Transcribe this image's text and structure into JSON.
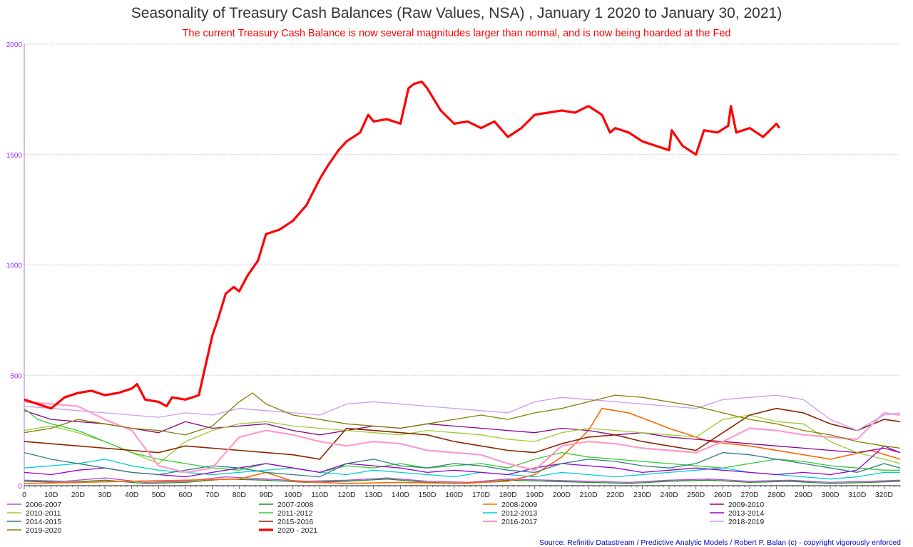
{
  "chart_data": {
    "type": "line",
    "title": "Seasonality of Treasury Cash Balances (Raw Values, NSA) , January 1 2020 to January 30, 2021)",
    "subtitle": "The current Treasury Cash Balance is now several magnitudes larger than normal, and is now being hoarded at the Fed",
    "xlabel": "",
    "ylabel": "",
    "xlim": [
      0,
      326
    ],
    "ylim": [
      0,
      2000
    ],
    "x_ticks": [
      "0",
      "10D",
      "20D",
      "30D",
      "40D",
      "50D",
      "60D",
      "70D",
      "80D",
      "90D",
      "100D",
      "110D",
      "120D",
      "130D",
      "140D",
      "150D",
      "160D",
      "170D",
      "180D",
      "190D",
      "200D",
      "210D",
      "220D",
      "230D",
      "240D",
      "250D",
      "260D",
      "270D",
      "280D",
      "290D",
      "300D",
      "310D",
      "320D"
    ],
    "y_ticks": [
      "0",
      "500",
      "1000",
      "1500",
      "2000"
    ],
    "grid": "horizontal dotted",
    "legend_position": "bottom",
    "source": "Source: Refinitiv Datastream / Predictive Analytic Models / Robert P. Balan (c)  - copyright vigorously enforced",
    "series": [
      {
        "name": "2006-2007",
        "color": "#b04fd6",
        "width": 1.3,
        "x": [
          0,
          15,
          30,
          45,
          60,
          75,
          90,
          105,
          120,
          135,
          150,
          165,
          180,
          195,
          210,
          225,
          240,
          255,
          270,
          285,
          300,
          315,
          326
        ],
        "values": [
          25,
          20,
          35,
          15,
          20,
          40,
          30,
          20,
          25,
          35,
          20,
          15,
          30,
          25,
          20,
          15,
          25,
          30,
          20,
          25,
          15,
          20,
          25
        ]
      },
      {
        "name": "2007-2008",
        "color": "#228b22",
        "width": 1.3,
        "x": [
          0,
          15,
          30,
          45,
          60,
          75,
          90,
          105,
          120,
          135,
          150,
          165,
          180,
          195,
          210,
          225,
          240,
          255,
          270,
          285,
          300,
          315,
          326
        ],
        "values": [
          20,
          15,
          25,
          10,
          15,
          30,
          25,
          15,
          20,
          30,
          15,
          10,
          25,
          20,
          15,
          10,
          20,
          25,
          15,
          20,
          10,
          15,
          20
        ]
      },
      {
        "name": "2008-2009",
        "color": "#ff6600",
        "width": 1.6,
        "x": [
          0,
          20,
          40,
          60,
          80,
          90,
          100,
          120,
          140,
          160,
          180,
          190,
          200,
          210,
          215,
          225,
          240,
          255,
          270,
          285,
          300,
          315,
          326
        ],
        "values": [
          10,
          15,
          20,
          25,
          30,
          60,
          20,
          10,
          15,
          10,
          20,
          50,
          130,
          250,
          350,
          330,
          260,
          200,
          180,
          150,
          120,
          160,
          120
        ]
      },
      {
        "name": "2009-2010",
        "color": "#8b008b",
        "width": 1.3,
        "x": [
          0,
          10,
          20,
          30,
          40,
          50,
          60,
          70,
          80,
          90,
          100,
          110,
          120,
          130,
          140,
          150,
          160,
          170,
          180,
          190,
          200,
          210,
          220,
          230,
          240,
          250,
          260,
          270,
          280,
          290,
          300,
          310,
          320,
          326
        ],
        "values": [
          340,
          300,
          290,
          280,
          260,
          240,
          290,
          260,
          270,
          280,
          250,
          230,
          250,
          270,
          260,
          280,
          270,
          260,
          250,
          240,
          260,
          250,
          230,
          240,
          220,
          210,
          200,
          190,
          180,
          170,
          160,
          150,
          170,
          150
        ]
      },
      {
        "name": "2010-2011",
        "color": "#9acd32",
        "width": 1.3,
        "x": [
          0,
          10,
          20,
          30,
          40,
          50,
          60,
          70,
          80,
          90,
          100,
          110,
          120,
          130,
          140,
          150,
          160,
          170,
          180,
          190,
          200,
          210,
          220,
          230,
          240,
          250,
          260,
          270,
          280,
          290,
          300,
          310,
          320,
          326
        ],
        "values": [
          250,
          270,
          240,
          200,
          150,
          100,
          200,
          250,
          280,
          290,
          270,
          260,
          250,
          240,
          230,
          250,
          240,
          230,
          210,
          200,
          240,
          260,
          250,
          240,
          230,
          220,
          300,
          320,
          290,
          280,
          200,
          150,
          120,
          100
        ]
      },
      {
        "name": "2011-2012",
        "color": "#32cd32",
        "width": 1.3,
        "x": [
          0,
          5,
          10,
          20,
          30,
          40,
          50,
          60,
          70,
          80,
          90,
          100,
          110,
          120,
          130,
          140,
          150,
          160,
          170,
          180,
          190,
          200,
          210,
          220,
          230,
          240,
          250,
          260,
          270,
          280,
          290,
          300,
          310,
          320,
          326
        ],
        "values": [
          350,
          300,
          280,
          250,
          200,
          150,
          120,
          100,
          80,
          70,
          100,
          80,
          60,
          90,
          80,
          100,
          80,
          90,
          100,
          80,
          120,
          150,
          130,
          120,
          110,
          100,
          90,
          80,
          100,
          120,
          110,
          90,
          80,
          70,
          70
        ]
      },
      {
        "name": "2012-2013",
        "color": "#00ced1",
        "width": 1.3,
        "x": [
          0,
          10,
          20,
          30,
          40,
          50,
          60,
          70,
          80,
          90,
          100,
          110,
          120,
          130,
          140,
          150,
          160,
          170,
          180,
          190,
          200,
          210,
          220,
          230,
          240,
          250,
          260,
          270,
          280,
          290,
          300,
          310,
          320,
          326
        ],
        "values": [
          80,
          90,
          100,
          120,
          90,
          70,
          60,
          50,
          60,
          70,
          80,
          60,
          50,
          70,
          60,
          50,
          40,
          60,
          50,
          40,
          60,
          50,
          40,
          50,
          60,
          70,
          80,
          60,
          50,
          40,
          30,
          40,
          60,
          60
        ]
      },
      {
        "name": "2013-2014",
        "color": "#9400d3",
        "width": 1.3,
        "x": [
          0,
          10,
          20,
          30,
          40,
          50,
          60,
          70,
          80,
          90,
          100,
          110,
          120,
          130,
          140,
          150,
          160,
          170,
          180,
          190,
          200,
          210,
          220,
          230,
          240,
          250,
          260,
          270,
          280,
          290,
          300,
          310,
          320,
          326
        ],
        "values": [
          60,
          50,
          70,
          80,
          60,
          50,
          40,
          60,
          80,
          100,
          80,
          60,
          100,
          90,
          80,
          60,
          70,
          60,
          50,
          80,
          100,
          90,
          80,
          60,
          70,
          80,
          70,
          60,
          50,
          60,
          50,
          70,
          180,
          150
        ]
      },
      {
        "name": "2014-2015",
        "color": "#2f7f7f",
        "width": 1.3,
        "x": [
          0,
          10,
          20,
          30,
          40,
          50,
          60,
          70,
          80,
          90,
          100,
          110,
          120,
          130,
          140,
          150,
          160,
          170,
          180,
          190,
          200,
          210,
          220,
          230,
          240,
          250,
          260,
          270,
          280,
          290,
          300,
          310,
          320,
          326
        ],
        "values": [
          150,
          120,
          100,
          80,
          60,
          50,
          70,
          90,
          80,
          60,
          50,
          40,
          100,
          120,
          90,
          80,
          100,
          90,
          70,
          60,
          100,
          120,
          110,
          90,
          80,
          100,
          150,
          140,
          120,
          100,
          80,
          60,
          100,
          80
        ]
      },
      {
        "name": "2015-2016",
        "color": "#8b2500",
        "width": 1.6,
        "x": [
          0,
          10,
          20,
          30,
          40,
          50,
          60,
          70,
          80,
          90,
          100,
          110,
          120,
          130,
          140,
          150,
          160,
          170,
          180,
          190,
          200,
          210,
          220,
          230,
          240,
          250,
          260,
          270,
          280,
          290,
          300,
          310,
          320,
          326
        ],
        "values": [
          200,
          190,
          180,
          170,
          160,
          150,
          180,
          170,
          160,
          150,
          140,
          120,
          260,
          250,
          240,
          230,
          200,
          180,
          160,
          150,
          190,
          220,
          230,
          200,
          180,
          160,
          240,
          320,
          350,
          330,
          280,
          250,
          300,
          290
        ]
      },
      {
        "name": "2016-2017",
        "color": "#ff99cc",
        "width": 2.2,
        "x": [
          0,
          10,
          20,
          30,
          40,
          50,
          60,
          70,
          80,
          90,
          100,
          110,
          120,
          130,
          140,
          150,
          160,
          170,
          180,
          190,
          200,
          210,
          220,
          230,
          240,
          250,
          260,
          270,
          280,
          290,
          300,
          310,
          320,
          326
        ],
        "values": [
          380,
          370,
          360,
          300,
          250,
          90,
          60,
          80,
          220,
          250,
          230,
          200,
          180,
          200,
          190,
          160,
          150,
          140,
          100,
          70,
          180,
          200,
          190,
          170,
          160,
          150,
          200,
          260,
          250,
          230,
          220,
          210,
          330,
          320
        ]
      },
      {
        "name": "2018-2019",
        "color": "#c99cf5",
        "width": 1.3,
        "x": [
          0,
          10,
          20,
          30,
          40,
          50,
          60,
          70,
          80,
          90,
          100,
          110,
          120,
          130,
          140,
          150,
          160,
          170,
          180,
          190,
          200,
          210,
          220,
          230,
          240,
          250,
          260,
          270,
          280,
          290,
          300,
          310,
          320,
          326
        ],
        "values": [
          360,
          350,
          340,
          330,
          320,
          310,
          330,
          320,
          350,
          340,
          330,
          320,
          370,
          380,
          370,
          360,
          350,
          340,
          330,
          380,
          400,
          390,
          380,
          370,
          360,
          350,
          390,
          400,
          410,
          390,
          300,
          250,
          320,
          330
        ]
      },
      {
        "name": "2019-2020",
        "color": "#808000",
        "width": 1.3,
        "x": [
          0,
          10,
          20,
          30,
          40,
          50,
          60,
          70,
          80,
          85,
          90,
          100,
          110,
          120,
          130,
          140,
          150,
          160,
          170,
          180,
          190,
          200,
          210,
          220,
          230,
          240,
          250,
          260,
          270,
          280,
          290,
          300,
          310,
          320,
          326
        ],
        "values": [
          240,
          260,
          300,
          280,
          260,
          250,
          230,
          270,
          380,
          420,
          370,
          320,
          300,
          280,
          270,
          260,
          280,
          300,
          320,
          300,
          330,
          350,
          380,
          410,
          400,
          380,
          360,
          330,
          300,
          280,
          250,
          230,
          200,
          180,
          170
        ]
      },
      {
        "name": "2020 - 2021",
        "color": "#ff0000",
        "width": 3.2,
        "x": [
          0,
          5,
          10,
          15,
          20,
          25,
          30,
          35,
          40,
          42,
          45,
          50,
          53,
          55,
          60,
          65,
          67,
          70,
          72,
          75,
          78,
          80,
          83,
          87,
          90,
          95,
          100,
          105,
          110,
          113,
          117,
          120,
          125,
          128,
          130,
          135,
          140,
          143,
          145,
          148,
          150,
          155,
          160,
          165,
          170,
          175,
          180,
          185,
          190,
          195,
          200,
          205,
          210,
          215,
          218,
          220,
          225,
          230,
          235,
          240,
          241,
          245,
          250,
          253,
          258,
          262,
          263,
          265,
          270,
          275,
          280,
          281
        ],
        "values": [
          390,
          370,
          350,
          400,
          420,
          430,
          410,
          420,
          440,
          460,
          390,
          380,
          360,
          400,
          390,
          410,
          520,
          680,
          750,
          870,
          900,
          880,
          950,
          1020,
          1140,
          1160,
          1200,
          1270,
          1390,
          1450,
          1520,
          1560,
          1600,
          1680,
          1650,
          1660,
          1640,
          1800,
          1820,
          1830,
          1800,
          1700,
          1640,
          1650,
          1620,
          1650,
          1580,
          1620,
          1680,
          1690,
          1700,
          1690,
          1720,
          1680,
          1600,
          1620,
          1600,
          1560,
          1540,
          1520,
          1610,
          1540,
          1500,
          1610,
          1600,
          1630,
          1720,
          1600,
          1620,
          1580,
          1640,
          1620
        ]
      }
    ]
  }
}
